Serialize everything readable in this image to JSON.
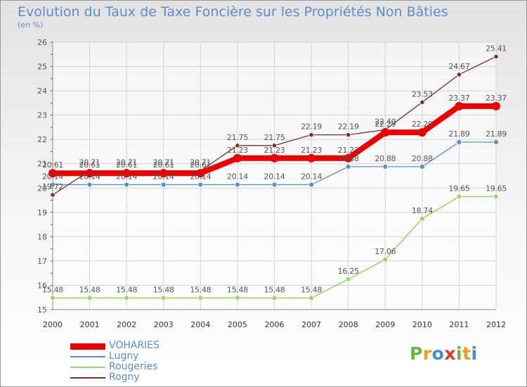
{
  "header": {
    "title": "Evolution du Taux de Taxe Foncière sur les Propriétés Non Bâties",
    "subtitle": "(en %)"
  },
  "logo": {
    "letters": [
      "P",
      "r",
      "o",
      "x",
      "i",
      "t",
      "i"
    ],
    "colors": [
      "#6fb33c",
      "#f29b1f",
      "#3d8fd6",
      "#e0392b",
      "#6fb33c",
      "#f29b1f",
      "#3d8fd6"
    ]
  },
  "chart_data": {
    "type": "line",
    "title": "Evolution du Taux de Taxe Foncière sur les Propriétés Non Bâties",
    "ylabel": "(en %)",
    "x": [
      "2000",
      "2001",
      "2002",
      "2003",
      "2004",
      "2005",
      "2006",
      "2007",
      "2008",
      "2009",
      "2010",
      "2011",
      "2012"
    ],
    "ylim": [
      15,
      26
    ],
    "yticks": [
      "15",
      "16",
      "17",
      "18",
      "19",
      "20",
      "21",
      "22",
      "23",
      "24",
      "25",
      "26"
    ],
    "grid": true,
    "legend_position": "bottom-left",
    "series": [
      {
        "name": "VOHARIES",
        "color": "#ee0000",
        "width": 8,
        "marker": 6,
        "values": [
          20.61,
          20.61,
          20.61,
          20.61,
          20.61,
          21.23,
          21.23,
          21.23,
          21.23,
          22.29,
          22.29,
          23.37,
          23.37
        ],
        "labels": [
          "20.61",
          "20.61",
          "20.61",
          "20.61",
          "20.61",
          "21.23",
          "21.23",
          "21.23",
          "21.23",
          "22.29",
          "22.29",
          "23.37",
          "23.37"
        ]
      },
      {
        "name": "Lugny",
        "color": "#5b8fc8",
        "width": 1.3,
        "marker": 3.5,
        "values": [
          20.14,
          20.14,
          20.14,
          20.14,
          20.14,
          20.14,
          20.14,
          20.14,
          20.88,
          20.88,
          20.88,
          21.89,
          21.89
        ],
        "labels": [
          "20.14",
          "20.14",
          "20.14",
          "20.14",
          "20.14",
          "20.14",
          "20.14",
          "20.14",
          "20.88",
          "20.88",
          "20.88",
          "21.89",
          "21.89"
        ]
      },
      {
        "name": "Rougeries",
        "color": "#9dd46c",
        "width": 1.6,
        "marker": 3.5,
        "values": [
          15.48,
          15.48,
          15.48,
          15.48,
          15.48,
          15.48,
          15.48,
          15.48,
          16.25,
          17.06,
          18.74,
          19.65,
          19.65
        ],
        "labels": [
          "15.48",
          "15.48",
          "15.48",
          "15.48",
          "15.48",
          "15.48",
          "15.48",
          "15.48",
          "16.25",
          "17.06",
          "18.74",
          "19.65",
          "19.65"
        ]
      },
      {
        "name": "Rogny",
        "color": "#7a2f2f",
        "width": 1.3,
        "marker": 3.2,
        "values": [
          19.72,
          20.71,
          20.71,
          20.71,
          20.71,
          21.75,
          21.75,
          22.19,
          22.19,
          22.4,
          23.53,
          24.67,
          25.41
        ],
        "labels": [
          "19.72",
          "20.71",
          "20.71",
          "20.71",
          "20.71",
          "21.75",
          "21.75",
          "22.19",
          "22.19",
          "22.40",
          "23.53",
          "24.67",
          "25.41"
        ]
      }
    ]
  }
}
